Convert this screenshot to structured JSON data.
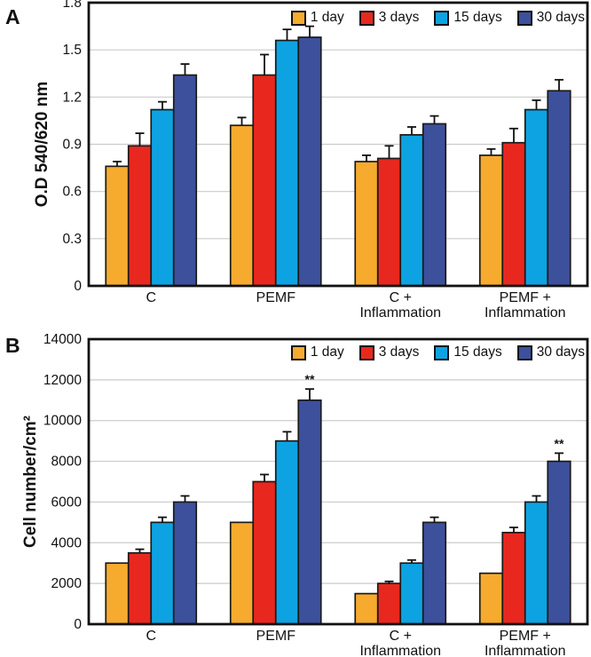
{
  "figure": {
    "background": "#FFFFFF",
    "bar_outline_color": "#1A1A1A",
    "gridline_color": "#CBCBCB",
    "axis_color": "#111111"
  },
  "chart_data": [
    {
      "type": "bar",
      "panel_label": "A",
      "ylabel": "O.D 540/620 nm",
      "xlabel": "",
      "ylim": [
        0,
        1.8
      ],
      "ytick_step": 0.3,
      "ytick_labels": [
        "0",
        "0.3",
        "0.6",
        "0.9",
        "1.2",
        "1.5",
        "1.8"
      ],
      "grid": true,
      "legend_position": "top-right",
      "categories": [
        "C",
        "PEMF",
        "C +\nInflammation",
        "PEMF +\nInflammation"
      ],
      "series": [
        {
          "name": "1 day",
          "color": "#F6AB2E",
          "values": [
            0.76,
            1.02,
            0.79,
            0.83
          ],
          "errors": [
            0.03,
            0.05,
            0.04,
            0.04
          ]
        },
        {
          "name": "3 days",
          "color": "#E8281E",
          "values": [
            0.89,
            1.34,
            0.81,
            0.91
          ],
          "errors": [
            0.08,
            0.13,
            0.08,
            0.09
          ]
        },
        {
          "name": "15 days",
          "color": "#0DA3E2",
          "values": [
            1.12,
            1.56,
            0.96,
            1.12
          ],
          "errors": [
            0.05,
            0.07,
            0.05,
            0.06
          ]
        },
        {
          "name": "30 days",
          "color": "#3C509C",
          "values": [
            1.34,
            1.58,
            1.03,
            1.24
          ],
          "errors": [
            0.07,
            0.07,
            0.05,
            0.07
          ]
        }
      ],
      "annotations": []
    },
    {
      "type": "bar",
      "panel_label": "B",
      "ylabel": "Cell number/cm²",
      "xlabel": "",
      "ylim": [
        0,
        14000
      ],
      "ytick_step": 2000,
      "ytick_labels": [
        "0",
        "2000",
        "4000",
        "6000",
        "8000",
        "10000",
        "12000",
        "14000"
      ],
      "grid": true,
      "legend_position": "top-right",
      "categories": [
        "C",
        "PEMF",
        "C +\nInflammation",
        "PEMF +\nInflammation"
      ],
      "series": [
        {
          "name": "1 day",
          "color": "#F6AB2E",
          "values": [
            3000,
            5000,
            1500,
            2500
          ],
          "errors": [
            0,
            0,
            0,
            0
          ]
        },
        {
          "name": "3 days",
          "color": "#E8281E",
          "values": [
            3500,
            7000,
            2000,
            4500
          ],
          "errors": [
            180,
            350,
            100,
            250
          ]
        },
        {
          "name": "15 days",
          "color": "#0DA3E2",
          "values": [
            5000,
            9000,
            3000,
            6000
          ],
          "errors": [
            250,
            450,
            150,
            300
          ]
        },
        {
          "name": "30 days",
          "color": "#3C509C",
          "values": [
            6000,
            11000,
            5000,
            8000
          ],
          "errors": [
            300,
            550,
            250,
            400
          ]
        }
      ],
      "annotations": [
        {
          "category": "PEMF",
          "series": "30 days",
          "text": "**"
        },
        {
          "category": "PEMF +\nInflammation",
          "series": "30 days",
          "text": "**"
        }
      ]
    }
  ]
}
